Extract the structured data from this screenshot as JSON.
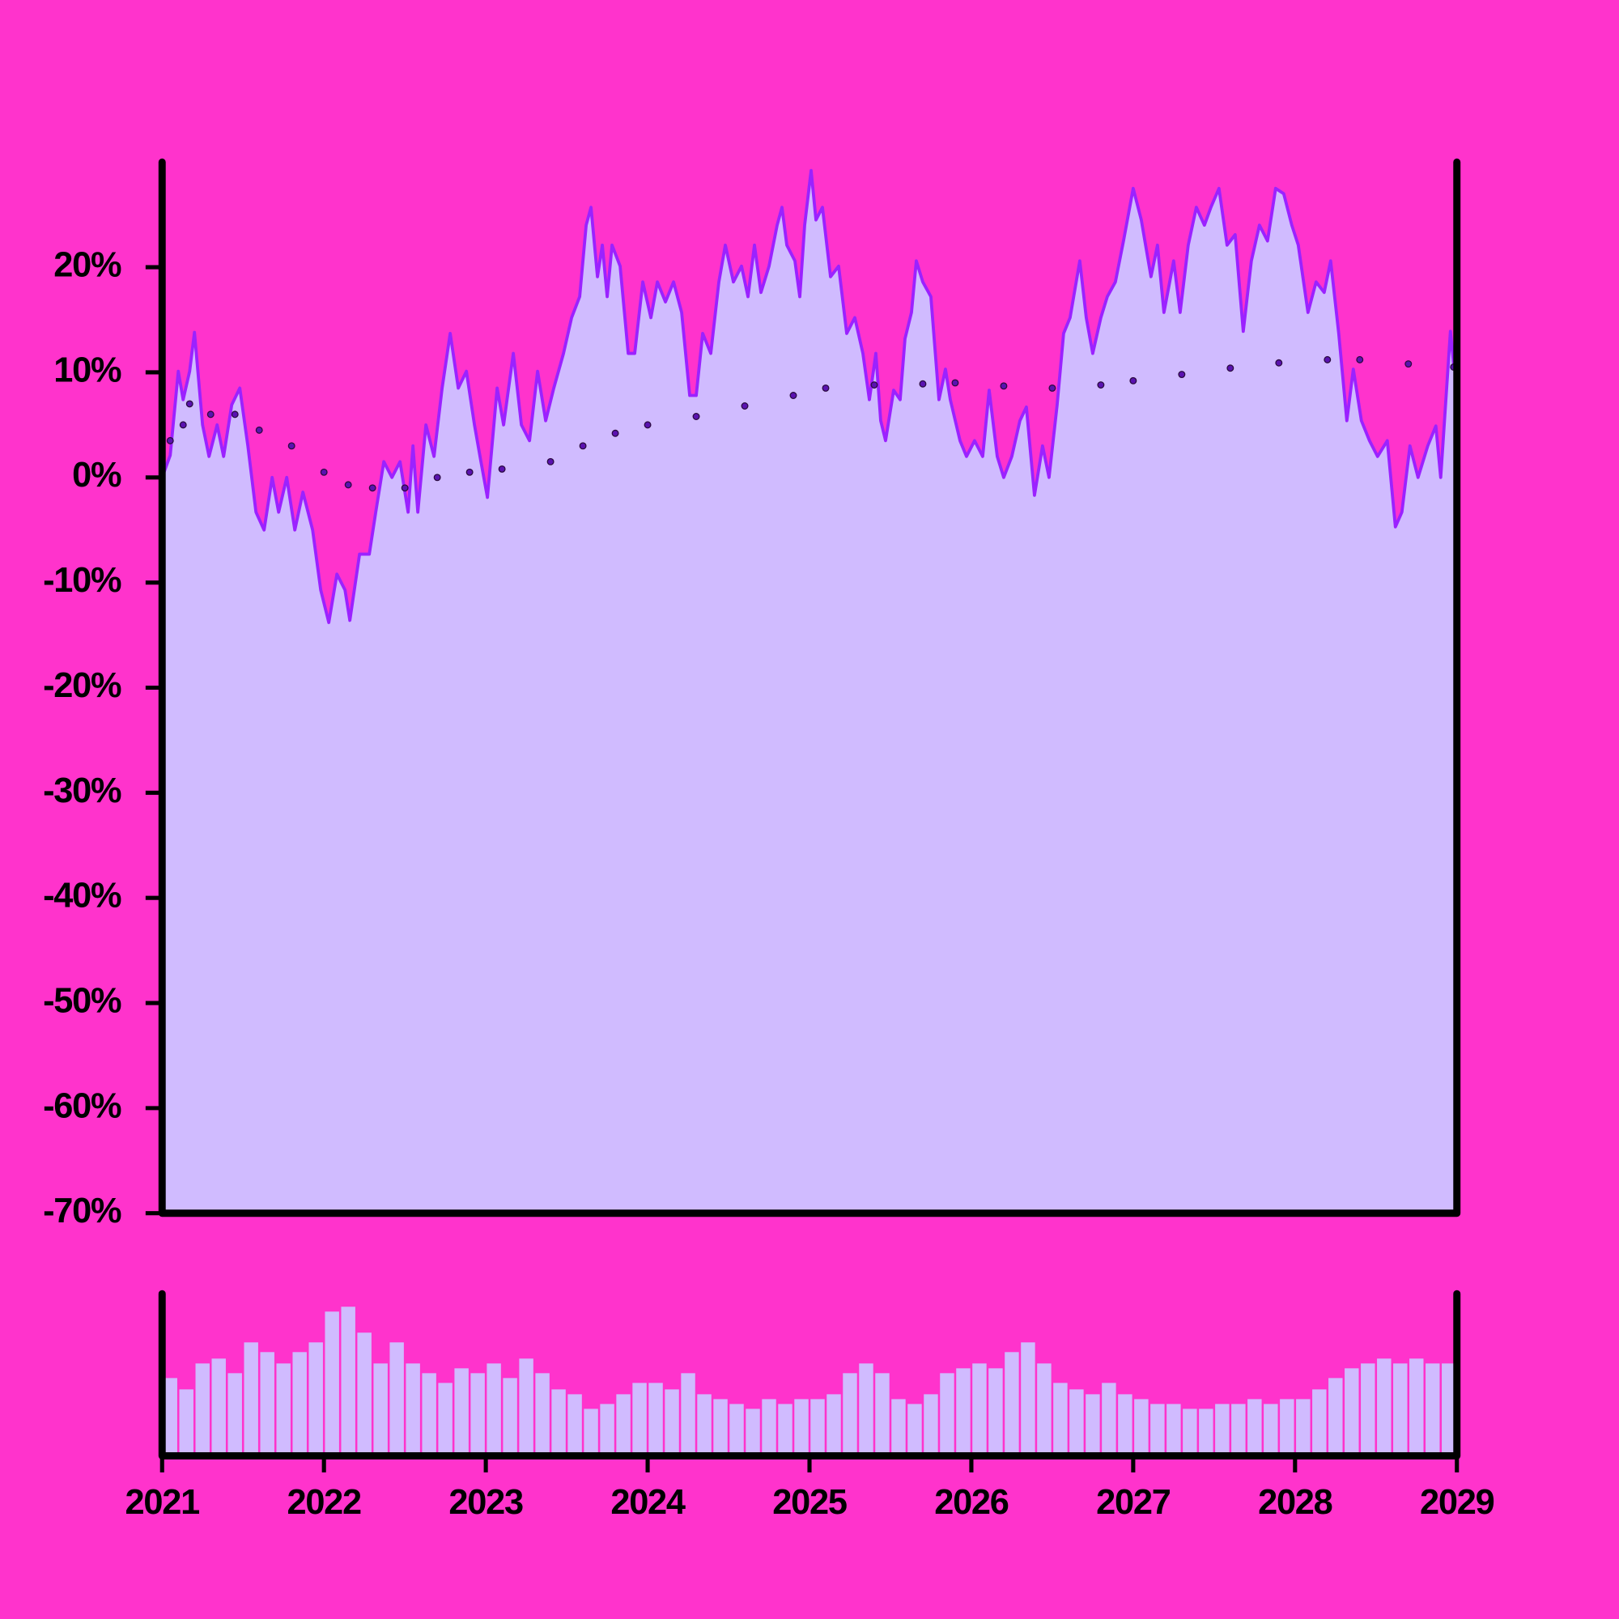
{
  "chart_data": [
    {
      "type": "area",
      "xlim": [
        2021,
        2029
      ],
      "ylim": [
        -70,
        30
      ],
      "yticks": [
        {
          "value": -70,
          "label": "-70%"
        },
        {
          "value": -60,
          "label": "-60%"
        },
        {
          "value": -50,
          "label": "-50%"
        },
        {
          "value": -40,
          "label": "-40%"
        },
        {
          "value": -30,
          "label": "-30%"
        },
        {
          "value": -20,
          "label": "-20%"
        },
        {
          "value": -10,
          "label": "-10%"
        },
        {
          "value": 0,
          "label": "0%"
        },
        {
          "value": 10,
          "label": "10%"
        },
        {
          "value": 20,
          "label": "20%"
        }
      ],
      "series": [
        {
          "type": "area",
          "color": "#9b22ff",
          "fill": "#d0bbff",
          "x": [
            2021.0,
            2021.05,
            2021.1,
            2021.13,
            2021.17,
            2021.2,
            2021.25,
            2021.29,
            2021.34,
            2021.38,
            2021.43,
            2021.48,
            2021.53,
            2021.58,
            2021.63,
            2021.68,
            2021.72,
            2021.77,
            2021.82,
            2021.87,
            2021.93,
            2021.98,
            2022.03,
            2022.08,
            2022.13,
            2022.16,
            2022.22,
            2022.28,
            2022.32,
            2022.37,
            2022.42,
            2022.47,
            2022.52,
            2022.55,
            2022.58,
            2022.63,
            2022.68,
            2022.73,
            2022.78,
            2022.83,
            2022.88,
            2022.93,
            2022.97,
            2023.01,
            2023.07,
            2023.11,
            2023.17,
            2023.22,
            2023.27,
            2023.32,
            2023.37,
            2023.42,
            2023.48,
            2023.53,
            2023.58,
            2023.62,
            2023.65,
            2023.69,
            2023.72,
            2023.75,
            2023.78,
            2023.83,
            2023.88,
            2023.92,
            2023.97,
            2024.02,
            2024.06,
            2024.11,
            2024.16,
            2024.21,
            2024.26,
            2024.3,
            2024.34,
            2024.39,
            2024.44,
            2024.48,
            2024.53,
            2024.58,
            2024.62,
            2024.66,
            2024.7,
            2024.75,
            2024.8,
            2024.83,
            2024.86,
            2024.91,
            2024.94,
            2024.97,
            2025.01,
            2025.04,
            2025.08,
            2025.13,
            2025.18,
            2025.23,
            2025.28,
            2025.33,
            2025.37,
            2025.41,
            2025.44,
            2025.47,
            2025.52,
            2025.56,
            2025.59,
            2025.63,
            2025.66,
            2025.7,
            2025.75,
            2025.8,
            2025.84,
            2025.87,
            2025.93,
            2025.97,
            2026.02,
            2026.07,
            2026.11,
            2026.16,
            2026.2,
            2026.25,
            2026.3,
            2026.34,
            2026.39,
            2026.44,
            2026.48,
            2026.53,
            2026.57,
            2026.61,
            2026.67,
            2026.71,
            2026.75,
            2026.8,
            2026.84,
            2026.89,
            2026.94,
            2027.0,
            2027.05,
            2027.11,
            2027.15,
            2027.19,
            2027.25,
            2027.29,
            2027.34,
            2027.39,
            2027.44,
            2027.48,
            2027.53,
            2027.58,
            2027.63,
            2027.68,
            2027.73,
            2027.78,
            2027.83,
            2027.88,
            2027.93,
            2027.98,
            2028.02,
            2028.08,
            2028.13,
            2028.18,
            2028.22,
            2028.27,
            2028.32,
            2028.36,
            2028.41,
            2028.46,
            2028.51,
            2028.57,
            2028.62,
            2028.66,
            2028.71,
            2028.76,
            2028.82,
            2028.87,
            2028.9,
            2028.96,
            2028.98
          ],
          "values": [
            0,
            2.1,
            10.1,
            7.4,
            10.1,
            13.8,
            5,
            2,
            5,
            2,
            6.9,
            8.5,
            3,
            -3.3,
            -5,
            0,
            -3.3,
            0,
            -5,
            -1.4,
            -5,
            -10.7,
            -13.8,
            -9.2,
            -10.7,
            -13.6,
            -7.3,
            -7.3,
            -3.3,
            1.5,
            0,
            1.5,
            -3.3,
            3,
            -3.3,
            5,
            2,
            8.5,
            13.7,
            8.5,
            10.1,
            5,
            1.5,
            -1.9,
            8.5,
            5,
            11.8,
            5,
            3.5,
            10.1,
            5.4,
            8.5,
            11.8,
            15.2,
            17.2,
            24,
            25.7,
            19.1,
            22.1,
            17.2,
            22.1,
            20.1,
            11.8,
            11.8,
            18.6,
            15.2,
            18.6,
            16.7,
            18.6,
            15.7,
            7.8,
            7.8,
            13.7,
            11.8,
            18.6,
            22.1,
            18.6,
            20.1,
            17.2,
            22.1,
            17.6,
            20.1,
            24,
            25.7,
            22.1,
            20.6,
            17.2,
            24,
            29.2,
            24.5,
            25.7,
            19.1,
            20.1,
            13.7,
            15.2,
            11.8,
            7.4,
            11.8,
            5.4,
            3.5,
            8.3,
            7.4,
            13.2,
            15.7,
            20.6,
            18.6,
            17.2,
            7.4,
            10.3,
            7.4,
            3.5,
            2,
            3.5,
            2,
            8.3,
            2,
            0,
            2,
            5.4,
            6.7,
            -1.7,
            3,
            0,
            6.9,
            13.7,
            15.2,
            20.6,
            15.2,
            11.8,
            15.2,
            17.2,
            18.6,
            22.5,
            27.5,
            24.5,
            19.1,
            22.1,
            15.7,
            20.6,
            15.7,
            22.1,
            25.7,
            24,
            25.7,
            27.5,
            22.1,
            23.1,
            13.9,
            20.6,
            24,
            22.5,
            27.5,
            27,
            24,
            22.1,
            15.7,
            18.6,
            17.6,
            20.6,
            13.7,
            5.4,
            10.3,
            5.4,
            3.5,
            2,
            3.5,
            -4.7,
            -3.3,
            3,
            0,
            3,
            4.9,
            0,
            13.9,
            10.8
          ]
        },
        {
          "type": "dots",
          "color": "#5a12b0",
          "x": [
            2021.05,
            2021.13,
            2021.17,
            2021.3,
            2021.45,
            2021.6,
            2021.8,
            2022.0,
            2022.15,
            2022.3,
            2022.5,
            2022.7,
            2022.9,
            2023.1,
            2023.4,
            2023.6,
            2023.8,
            2024.0,
            2024.3,
            2024.6,
            2024.9,
            2025.1,
            2025.4,
            2025.7,
            2025.9,
            2026.2,
            2026.5,
            2026.8,
            2027.0,
            2027.3,
            2027.6,
            2027.9,
            2028.2,
            2028.4,
            2028.7,
            2028.98
          ],
          "values": [
            3.5,
            5,
            7,
            6,
            6,
            4.5,
            3,
            0.5,
            -0.7,
            -1,
            -1,
            0,
            0.5,
            0.8,
            1.5,
            3,
            4.2,
            5,
            5.8,
            6.8,
            7.8,
            8.5,
            8.8,
            8.9,
            9,
            8.7,
            8.5,
            8.8,
            9.2,
            9.8,
            10.4,
            10.9,
            11.2,
            11.2,
            10.8,
            10.5
          ]
        }
      ]
    },
    {
      "type": "bar",
      "color": "#d0bbff",
      "xlim": [
        2021,
        2029
      ],
      "ylim": [
        0,
        100
      ],
      "xticks": [
        2021,
        2022,
        2023,
        2024,
        2025,
        2026,
        2027,
        2028,
        2029
      ],
      "x": [
        2021.05,
        2021.15,
        2021.25,
        2021.35,
        2021.45,
        2021.55,
        2021.65,
        2021.75,
        2021.85,
        2021.95,
        2022.05,
        2022.15,
        2022.25,
        2022.35,
        2022.45,
        2022.55,
        2022.65,
        2022.75,
        2022.85,
        2022.95,
        2023.05,
        2023.15,
        2023.25,
        2023.35,
        2023.45,
        2023.55,
        2023.65,
        2023.75,
        2023.85,
        2023.95,
        2024.05,
        2024.15,
        2024.25,
        2024.35,
        2024.45,
        2024.55,
        2024.65,
        2024.75,
        2024.85,
        2024.95,
        2025.05,
        2025.15,
        2025.25,
        2025.35,
        2025.45,
        2025.55,
        2025.65,
        2025.75,
        2025.85,
        2025.95,
        2026.05,
        2026.15,
        2026.25,
        2026.35,
        2026.45,
        2026.55,
        2026.65,
        2026.75,
        2026.85,
        2026.95,
        2027.05,
        2027.15,
        2027.25,
        2027.35,
        2027.45,
        2027.55,
        2027.65,
        2027.75,
        2027.85,
        2027.95,
        2028.05,
        2028.15,
        2028.25,
        2028.35,
        2028.45,
        2028.55,
        2028.65,
        2028.75,
        2028.85,
        2028.95
      ],
      "values": [
        48,
        41,
        57,
        60,
        51,
        70,
        64,
        57,
        64,
        70,
        89,
        92,
        76,
        57,
        70,
        57,
        51,
        45,
        54,
        51,
        57,
        48,
        60,
        51,
        41,
        38,
        29,
        32,
        38,
        45,
        45,
        41,
        51,
        38,
        35,
        32,
        29,
        35,
        32,
        35,
        35,
        38,
        51,
        57,
        51,
        35,
        32,
        38,
        51,
        54,
        57,
        54,
        64,
        70,
        57,
        45,
        41,
        38,
        45,
        38,
        35,
        32,
        32,
        29,
        29,
        32,
        32,
        35,
        32,
        35,
        35,
        41,
        48,
        54,
        57,
        60,
        57,
        60,
        57,
        57
      ]
    }
  ]
}
